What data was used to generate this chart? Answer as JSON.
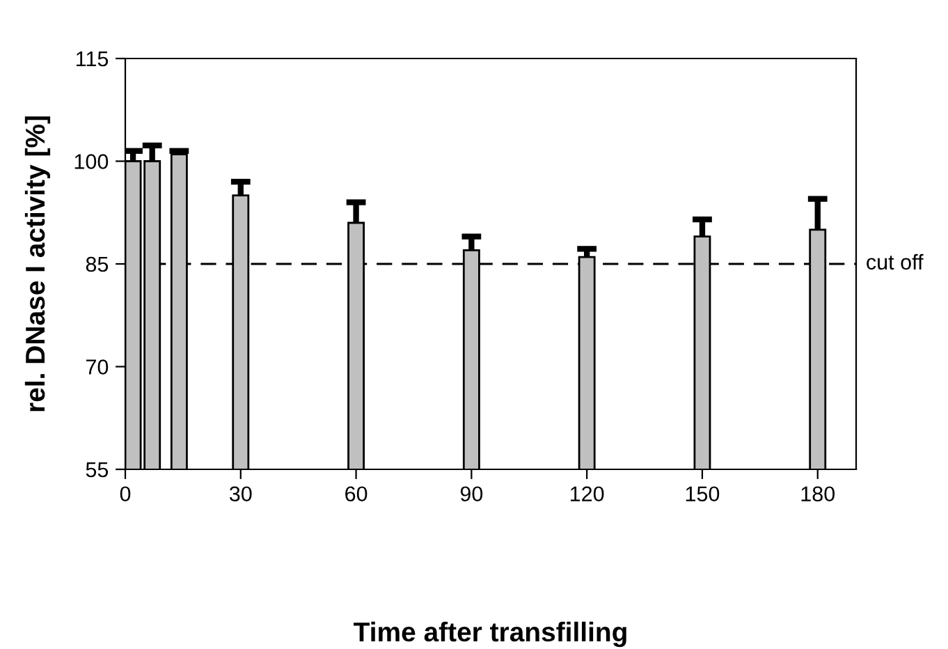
{
  "chart_data": {
    "type": "bar",
    "xlabel": "Time after transfilling",
    "ylabel": "rel. DNase I activity [%]",
    "x": [
      2,
      7,
      14,
      30,
      60,
      90,
      120,
      150,
      180
    ],
    "values": [
      100,
      100,
      101,
      95,
      91,
      87,
      86,
      89,
      90
    ],
    "errors": [
      [
        100,
        101.5
      ],
      [
        100,
        102.3
      ],
      [
        101,
        101.5
      ],
      [
        95,
        97
      ],
      [
        91,
        94
      ],
      [
        87,
        89
      ],
      [
        86,
        87.2
      ],
      [
        89,
        91.5
      ],
      [
        90,
        94.5
      ]
    ],
    "color": "#c0c0c0",
    "xlim": [
      0,
      190
    ],
    "xticks": [
      0,
      30,
      60,
      90,
      120,
      150,
      180
    ],
    "ylim": [
      55,
      115
    ],
    "yticks": [
      55,
      70,
      85,
      100,
      115
    ],
    "ref_lines": [
      {
        "axis": "y",
        "value": 85,
        "label": "cut off",
        "color": "#000000",
        "line_style": "dashed"
      }
    ],
    "grid": false,
    "legend": false
  }
}
